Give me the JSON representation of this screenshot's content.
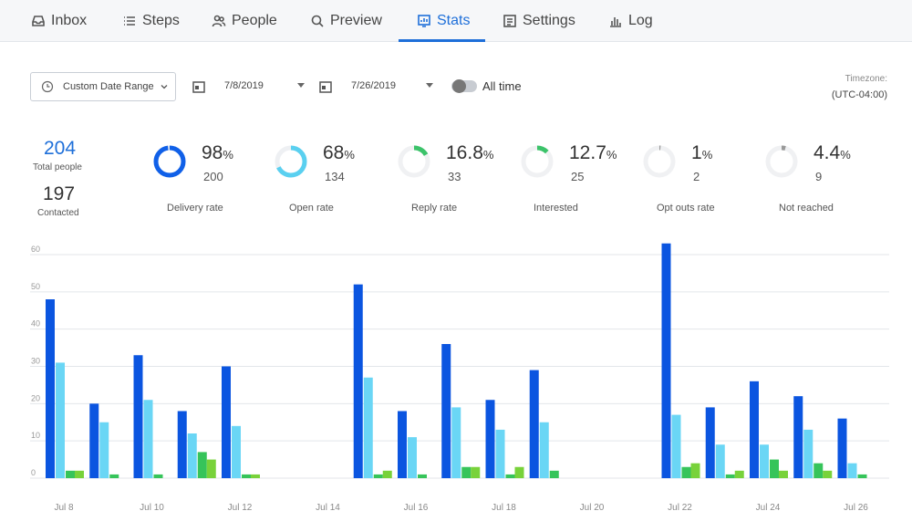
{
  "nav": {
    "tabs": [
      {
        "label": "Inbox",
        "icon": "inbox-icon"
      },
      {
        "label": "Steps",
        "icon": "list-icon"
      },
      {
        "label": "People",
        "icon": "people-icon"
      },
      {
        "label": "Preview",
        "icon": "search-icon"
      },
      {
        "label": "Stats",
        "icon": "stats-icon",
        "active": true
      },
      {
        "label": "Settings",
        "icon": "settings-icon"
      },
      {
        "label": "Log",
        "icon": "bar-chart-icon"
      }
    ]
  },
  "controls": {
    "date_range": "Custom Date Range",
    "start_date": "7/8/2019",
    "end_date": "7/26/2019",
    "all_time": "All time",
    "all_time_on": false,
    "timezone_label": "Timezone:",
    "timezone_value": "(UTC-04:00)"
  },
  "totals": {
    "total_people": "204",
    "total_people_label": "Total people",
    "contacted": "197",
    "contacted_label": "Contacted"
  },
  "stats": [
    {
      "pct": "98",
      "unit": "%",
      "count": "200",
      "label": "Delivery rate",
      "fraction": 0.98,
      "color": "#1060e8",
      "track": "#e8ebef"
    },
    {
      "pct": "68",
      "unit": "%",
      "count": "134",
      "label": "Open rate",
      "fraction": 0.68,
      "color": "#5ad0f0",
      "track": "#eef0f3"
    },
    {
      "pct": "16.8",
      "unit": "%",
      "count": "33",
      "label": "Reply rate",
      "fraction": 0.168,
      "color": "#3cc36a",
      "track": "#f0f1f3"
    },
    {
      "pct": "12.7",
      "unit": "%",
      "count": "25",
      "label": "Interested",
      "fraction": 0.127,
      "color": "#3cc36a",
      "track": "#f0f1f3"
    },
    {
      "pct": "1",
      "unit": "%",
      "count": "2",
      "label": "Opt outs rate",
      "fraction": 0.01,
      "color": "#999999",
      "track": "#f0f1f3"
    },
    {
      "pct": "4.4",
      "unit": "%",
      "count": "9",
      "label": "Not reached",
      "fraction": 0.044,
      "color": "#999999",
      "track": "#f0f1f3"
    }
  ],
  "chart_data": {
    "type": "bar",
    "y_ticks": [
      "0",
      "10",
      "20",
      "30",
      "40",
      "50",
      "60"
    ],
    "ylim": [
      0,
      60
    ],
    "grid": true,
    "x_labels": [
      "Jul 8",
      "Jul 10",
      "Jul 12",
      "Jul 14",
      "Jul 16",
      "Jul 18",
      "Jul 20",
      "Jul 22",
      "Jul 24",
      "Jul 26"
    ],
    "categories": [
      "Jul 8",
      "Jul 9",
      "Jul 10",
      "Jul 11",
      "Jul 12",
      "Jul 13",
      "Jul 14",
      "Jul 15",
      "Jul 16",
      "Jul 17",
      "Jul 18",
      "Jul 19",
      "Jul 20",
      "Jul 21",
      "Jul 22",
      "Jul 23",
      "Jul 24",
      "Jul 25",
      "Jul 26"
    ],
    "series": [
      {
        "color": "#0b55e0",
        "values": [
          48,
          20,
          33,
          18,
          30,
          0,
          0,
          52,
          18,
          36,
          21,
          29,
          0,
          0,
          63,
          19,
          26,
          22,
          16
        ]
      },
      {
        "color": "#6ad6f5",
        "values": [
          31,
          15,
          21,
          12,
          14,
          0,
          0,
          27,
          11,
          19,
          13,
          15,
          0,
          0,
          17,
          9,
          9,
          13,
          4
        ]
      },
      {
        "color": "#36c45a",
        "values": [
          2,
          1,
          1,
          7,
          1,
          0,
          0,
          1,
          1,
          3,
          1,
          2,
          0,
          0,
          3,
          1,
          5,
          4,
          1
        ]
      },
      {
        "color": "#78d23a",
        "values": [
          2,
          0,
          0,
          5,
          1,
          0,
          0,
          2,
          0,
          3,
          3,
          0,
          0,
          0,
          4,
          2,
          2,
          2,
          0
        ]
      }
    ]
  }
}
